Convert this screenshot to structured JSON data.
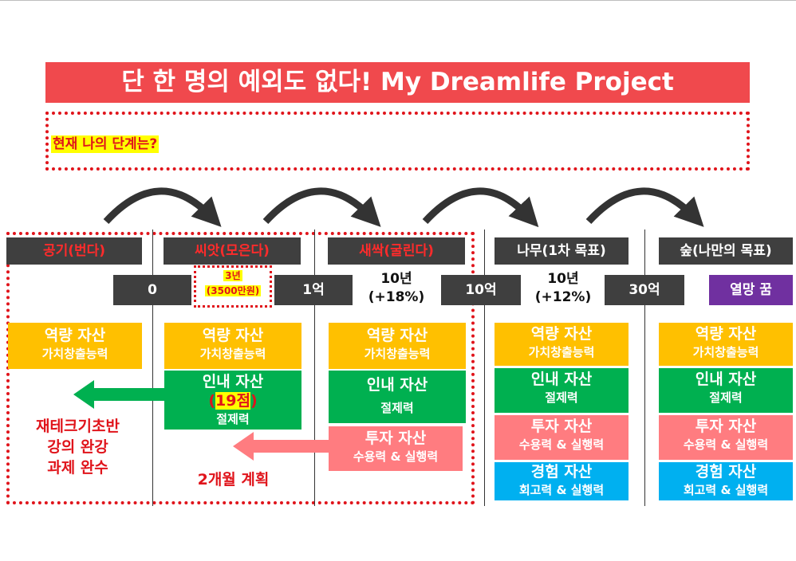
{
  "banner": {
    "title": "단 한 명의 예외도 없다! My Dreamlife Project"
  },
  "question": {
    "label": "현재 나의 단계는?"
  },
  "stages": [
    {
      "label": "공기(번다)"
    },
    {
      "label": "씨앗(모은다)"
    },
    {
      "label": "새싹(굴린다)"
    },
    {
      "label": "나무(1차 목표)"
    },
    {
      "label": "숲(나만의 목표)"
    }
  ],
  "money": {
    "m0": "0",
    "m1": "1억",
    "m2": "10억",
    "m3": "30억",
    "dream": "열망 꿈"
  },
  "periods": {
    "p1_years": "3년",
    "p1_amount": "(3500만원)",
    "p2_years": "10년",
    "p2_rate": "(+18%)",
    "p3_years": "10년",
    "p3_rate": "(+12%)"
  },
  "assets": {
    "capability": {
      "title": "역량 자산",
      "sub": "가치창출능력"
    },
    "patience": {
      "title": "인내 자산",
      "sub": "절제력",
      "score_open": "(",
      "score": "19점",
      "score_close": ")"
    },
    "investment": {
      "title": "투자 자산",
      "sub": "수용력 & 실행력"
    },
    "experience": {
      "title": "경험 자산",
      "sub": "회고력 & 실행력"
    }
  },
  "notes": {
    "left_line1": "재테크기초반",
    "left_line2": "강의 완강",
    "left_line3": "과제 완수",
    "plan": "2개월 계획"
  },
  "colors": {
    "banner": "#f0494d",
    "stage_box": "#3f3f3f",
    "stage_red_text": "#ff2b2b",
    "capability": "#ffc000",
    "patience": "#00b050",
    "investment": "#ff7c80",
    "experience": "#00b0f0",
    "dream": "#7030a0",
    "dotted_border": "#e0141b"
  }
}
